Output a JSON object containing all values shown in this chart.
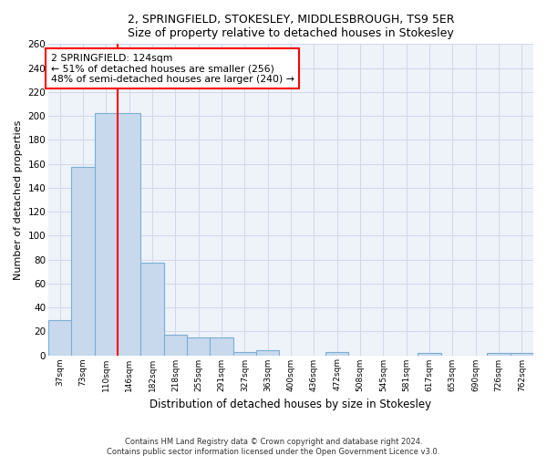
{
  "title1": "2, SPRINGFIELD, STOKESLEY, MIDDLESBROUGH, TS9 5ER",
  "title2": "Size of property relative to detached houses in Stokesley",
  "xlabel": "Distribution of detached houses by size in Stokesley",
  "ylabel": "Number of detached properties",
  "bar_labels": [
    "37sqm",
    "73sqm",
    "110sqm",
    "146sqm",
    "182sqm",
    "218sqm",
    "255sqm",
    "291sqm",
    "327sqm",
    "363sqm",
    "400sqm",
    "436sqm",
    "472sqm",
    "508sqm",
    "545sqm",
    "581sqm",
    "617sqm",
    "653sqm",
    "690sqm",
    "726sqm",
    "762sqm"
  ],
  "bar_values": [
    29,
    157,
    202,
    202,
    77,
    17,
    15,
    15,
    3,
    4,
    0,
    0,
    3,
    0,
    0,
    0,
    2,
    0,
    0,
    2,
    2
  ],
  "bar_color": "#c8d9ee",
  "bar_edge_color": "#7aafd4",
  "red_line_bar_index": 2,
  "annotation_line1": "2 SPRINGFIELD: 124sqm",
  "annotation_line2": "← 51% of detached houses are smaller (256)",
  "annotation_line3": "48% of semi-detached houses are larger (240) →",
  "ylim": [
    0,
    260
  ],
  "yticks": [
    0,
    20,
    40,
    60,
    80,
    100,
    120,
    140,
    160,
    180,
    200,
    220,
    240,
    260
  ],
  "footer1": "Contains HM Land Registry data © Crown copyright and database right 2024.",
  "footer2": "Contains public sector information licensed under the Open Government Licence v3.0.",
  "bg_color": "#eef2f9",
  "grid_color": "#d0d8e8"
}
